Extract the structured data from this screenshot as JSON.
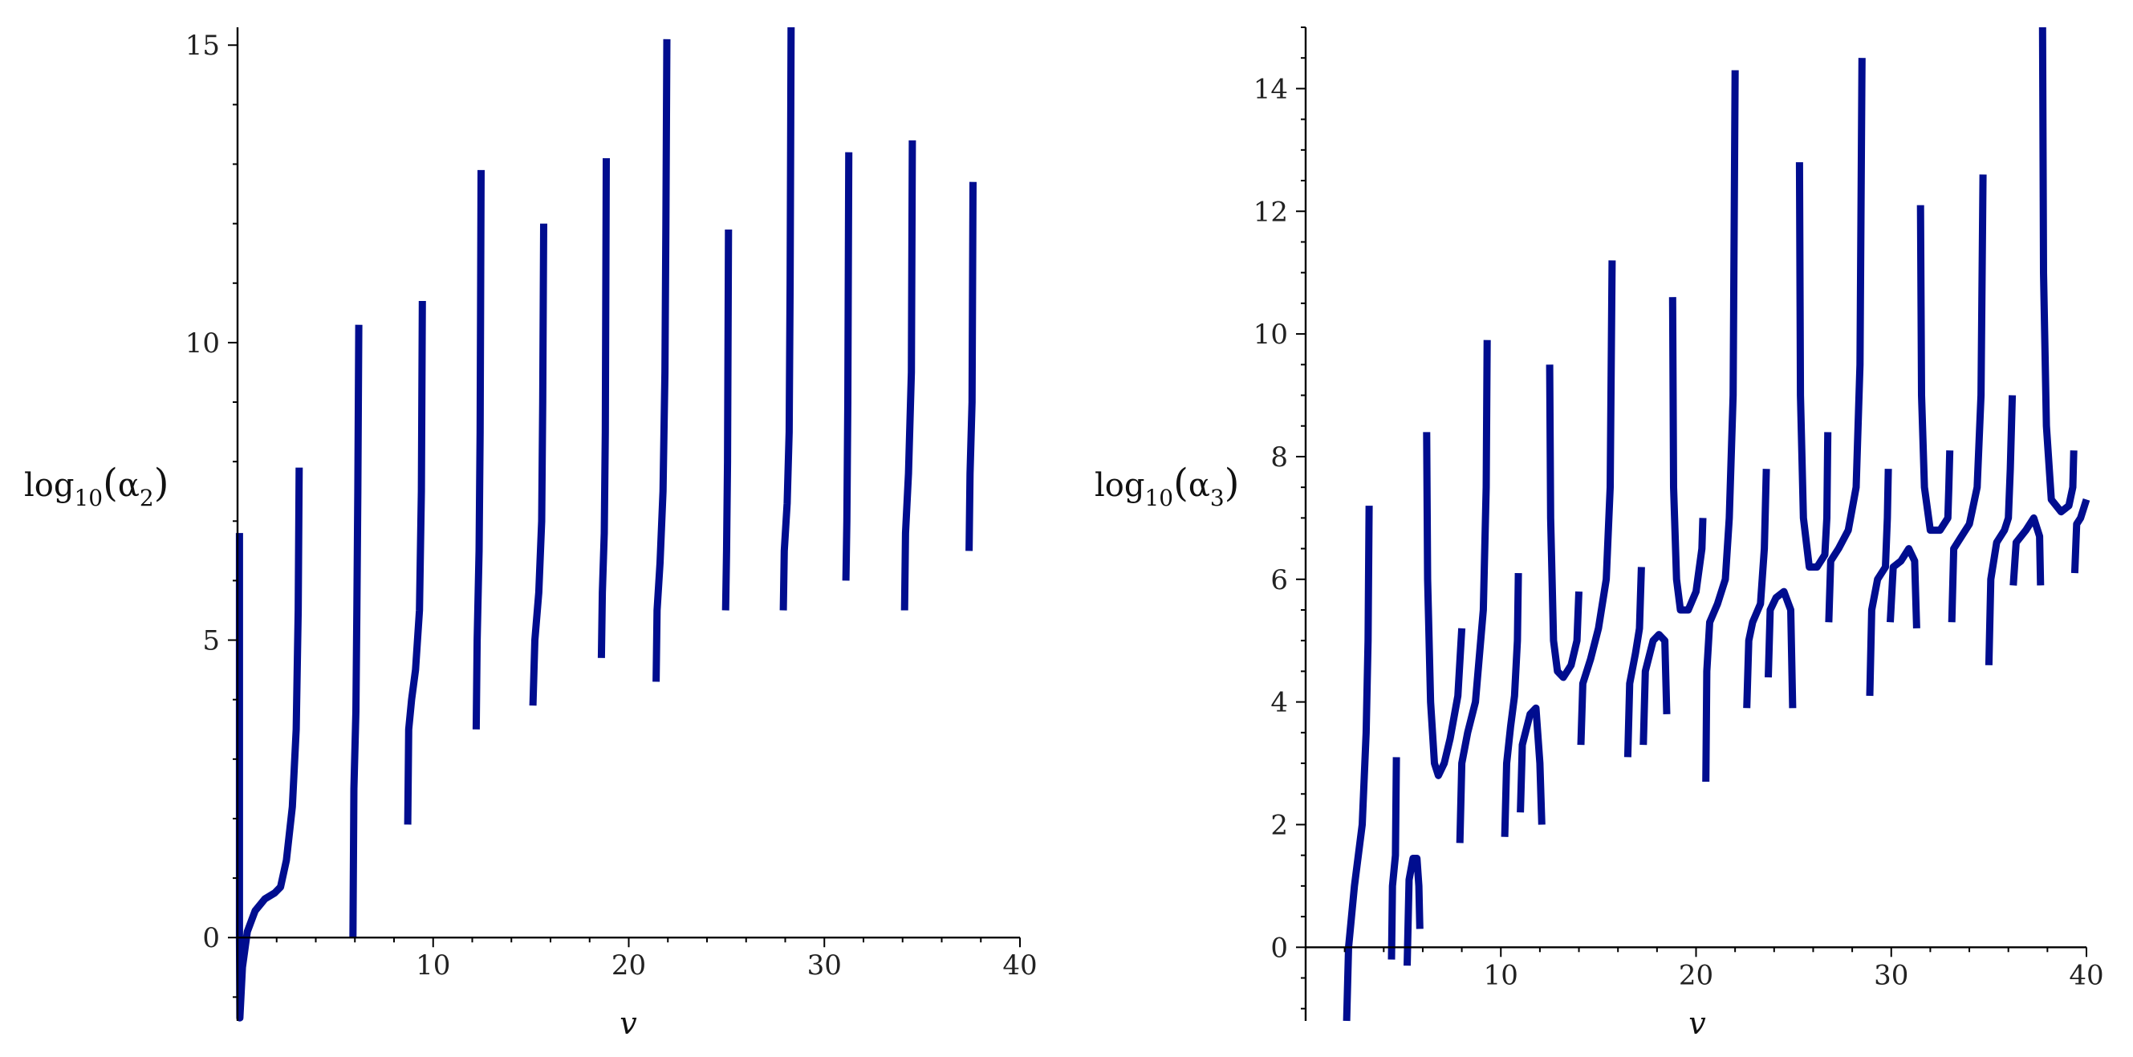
{
  "colors": {
    "curve": "#000d8f",
    "axis": "#000000",
    "background": "#ffffff"
  },
  "chart_data": [
    {
      "type": "line",
      "xlabel": "v",
      "ylabel": {
        "base": "log",
        "sub": "10",
        "arg": "α",
        "argsub": "2"
      },
      "xlim": [
        0,
        40
      ],
      "ylim": [
        -1.4,
        15.3
      ],
      "xticks": [
        10,
        20,
        30,
        40
      ],
      "yticks": [
        0,
        5,
        10,
        15
      ],
      "x_tick_labels": [
        "10",
        "20",
        "30",
        "40"
      ],
      "y_tick_labels": [
        "0",
        "5",
        "10",
        "15"
      ],
      "grid": false,
      "series": [
        {
          "points": [
            [
              0.1,
              6.8
            ],
            [
              0.1,
              0
            ],
            [
              0.12,
              -1.35
            ],
            [
              0.25,
              -0.5
            ],
            [
              0.5,
              0.1
            ],
            [
              0.9,
              0.45
            ],
            [
              1.4,
              0.65
            ],
            [
              1.9,
              0.75
            ],
            [
              2.2,
              0.85
            ],
            [
              2.5,
              1.3
            ],
            [
              2.8,
              2.2
            ],
            [
              3.0,
              3.5
            ],
            [
              3.1,
              5.5
            ],
            [
              3.15,
              7.9
            ]
          ]
        },
        {
          "points": [
            [
              5.9,
              0
            ],
            [
              5.95,
              2.5
            ],
            [
              6.05,
              3.8
            ],
            [
              6.1,
              5.5
            ],
            [
              6.15,
              7.5
            ],
            [
              6.2,
              10.3
            ]
          ]
        },
        {
          "points": [
            [
              8.7,
              1.9
            ],
            [
              8.75,
              3.5
            ],
            [
              8.9,
              4.0
            ],
            [
              9.1,
              4.5
            ],
            [
              9.3,
              5.5
            ],
            [
              9.4,
              7.5
            ],
            [
              9.45,
              10.7
            ]
          ]
        },
        {
          "points": [
            [
              12.2,
              3.5
            ],
            [
              12.25,
              5.0
            ],
            [
              12.35,
              6.5
            ],
            [
              12.4,
              8.5
            ],
            [
              12.45,
              12.9
            ]
          ]
        },
        {
          "points": [
            [
              15.1,
              3.9
            ],
            [
              15.2,
              5.0
            ],
            [
              15.4,
              5.8
            ],
            [
              15.55,
              7.0
            ],
            [
              15.6,
              9.0
            ],
            [
              15.65,
              12.0
            ]
          ]
        },
        {
          "points": [
            [
              18.6,
              4.7
            ],
            [
              18.65,
              5.8
            ],
            [
              18.75,
              6.8
            ],
            [
              18.8,
              8.5
            ],
            [
              18.85,
              13.1
            ]
          ]
        },
        {
          "points": [
            [
              21.4,
              4.3
            ],
            [
              21.45,
              5.5
            ],
            [
              21.6,
              6.3
            ],
            [
              21.75,
              7.5
            ],
            [
              21.85,
              9.5
            ],
            [
              21.9,
              12.0
            ],
            [
              21.95,
              15.1
            ]
          ]
        },
        {
          "points": [
            [
              24.95,
              5.5
            ],
            [
              25.0,
              6.5
            ],
            [
              25.05,
              8.0
            ],
            [
              25.1,
              11.9
            ]
          ]
        },
        {
          "points": [
            [
              27.9,
              5.5
            ],
            [
              27.95,
              6.5
            ],
            [
              28.1,
              7.3
            ],
            [
              28.2,
              8.5
            ],
            [
              28.25,
              11.0
            ],
            [
              28.3,
              15.3
            ]
          ]
        },
        {
          "points": [
            [
              31.1,
              6.0
            ],
            [
              31.15,
              7.0
            ],
            [
              31.2,
              9.0
            ],
            [
              31.25,
              13.2
            ]
          ]
        },
        {
          "points": [
            [
              34.1,
              5.5
            ],
            [
              34.15,
              6.8
            ],
            [
              34.3,
              7.8
            ],
            [
              34.45,
              9.5
            ],
            [
              34.5,
              13.4
            ]
          ]
        },
        {
          "points": [
            [
              37.4,
              6.5
            ],
            [
              37.45,
              7.8
            ],
            [
              37.55,
              9.0
            ],
            [
              37.6,
              12.7
            ]
          ]
        }
      ]
    },
    {
      "type": "line",
      "xlabel": "v",
      "ylabel": {
        "base": "log",
        "sub": "10",
        "arg": "α",
        "argsub": "3"
      },
      "xlim": [
        0,
        40
      ],
      "ylim": [
        -1.2,
        15
      ],
      "xticks": [
        10,
        20,
        30,
        40
      ],
      "yticks": [
        0,
        2,
        4,
        6,
        8,
        10,
        12,
        14
      ],
      "x_tick_labels": [
        "10",
        "20",
        "30",
        "40"
      ],
      "y_tick_labels": [
        "0",
        "2",
        "4",
        "6",
        "8",
        "10",
        "12",
        "14"
      ],
      "grid": false,
      "series": [
        {
          "points": [
            [
              2.1,
              -1.2
            ],
            [
              2.2,
              0
            ],
            [
              2.5,
              1.0
            ],
            [
              2.9,
              2.0
            ],
            [
              3.1,
              3.5
            ],
            [
              3.2,
              5.0
            ],
            [
              3.25,
              7.2
            ]
          ]
        },
        {
          "points": [
            [
              4.4,
              -0.2
            ],
            [
              4.45,
              1.0
            ],
            [
              4.6,
              1.5
            ],
            [
              4.65,
              3.1
            ]
          ]
        },
        {
          "points": [
            [
              5.2,
              -0.3
            ],
            [
              5.3,
              1.1
            ],
            [
              5.5,
              1.45
            ],
            [
              5.7,
              1.45
            ],
            [
              5.8,
              1.0
            ],
            [
              5.85,
              0.3
            ]
          ]
        },
        {
          "points": [
            [
              6.2,
              8.4
            ],
            [
              6.25,
              6.0
            ],
            [
              6.4,
              4.0
            ],
            [
              6.6,
              3.0
            ],
            [
              6.8,
              2.8
            ],
            [
              7.1,
              3.0
            ],
            [
              7.4,
              3.4
            ],
            [
              7.8,
              4.1
            ],
            [
              8.0,
              5.2
            ]
          ]
        },
        {
          "points": [
            [
              7.9,
              1.7
            ],
            [
              8.0,
              3.0
            ],
            [
              8.3,
              3.5
            ],
            [
              8.7,
              4.0
            ],
            [
              9.1,
              5.5
            ],
            [
              9.25,
              7.5
            ],
            [
              9.3,
              9.9
            ]
          ]
        },
        {
          "points": [
            [
              10.2,
              1.8
            ],
            [
              10.3,
              3.0
            ],
            [
              10.5,
              3.6
            ],
            [
              10.7,
              4.1
            ],
            [
              10.85,
              5.0
            ],
            [
              10.9,
              6.1
            ]
          ]
        },
        {
          "points": [
            [
              11.0,
              2.2
            ],
            [
              11.1,
              3.3
            ],
            [
              11.5,
              3.8
            ],
            [
              11.8,
              3.9
            ],
            [
              12.0,
              3.0
            ],
            [
              12.1,
              2.0
            ]
          ]
        },
        {
          "points": [
            [
              12.5,
              9.5
            ],
            [
              12.55,
              7.0
            ],
            [
              12.7,
              5.0
            ],
            [
              12.9,
              4.5
            ],
            [
              13.2,
              4.4
            ],
            [
              13.6,
              4.6
            ],
            [
              13.9,
              5.0
            ],
            [
              14.0,
              5.8
            ]
          ]
        },
        {
          "points": [
            [
              14.1,
              3.3
            ],
            [
              14.2,
              4.3
            ],
            [
              14.6,
              4.7
            ],
            [
              15.0,
              5.2
            ],
            [
              15.4,
              6.0
            ],
            [
              15.6,
              7.5
            ],
            [
              15.7,
              11.2
            ]
          ]
        },
        {
          "points": [
            [
              16.5,
              3.1
            ],
            [
              16.6,
              4.3
            ],
            [
              16.9,
              4.8
            ],
            [
              17.1,
              5.2
            ],
            [
              17.2,
              6.2
            ]
          ]
        },
        {
          "points": [
            [
              17.3,
              3.3
            ],
            [
              17.4,
              4.5
            ],
            [
              17.8,
              5.0
            ],
            [
              18.1,
              5.1
            ],
            [
              18.4,
              5.0
            ],
            [
              18.5,
              3.8
            ]
          ]
        },
        {
          "points": [
            [
              18.8,
              10.6
            ],
            [
              18.85,
              7.5
            ],
            [
              19.0,
              6.0
            ],
            [
              19.2,
              5.5
            ],
            [
              19.6,
              5.5
            ],
            [
              20.0,
              5.8
            ],
            [
              20.3,
              6.5
            ],
            [
              20.35,
              7.0
            ]
          ]
        },
        {
          "points": [
            [
              20.5,
              2.7
            ],
            [
              20.55,
              4.5
            ],
            [
              20.7,
              5.3
            ],
            [
              21.1,
              5.6
            ],
            [
              21.5,
              6.0
            ],
            [
              21.7,
              7.0
            ],
            [
              21.9,
              9.0
            ],
            [
              22.0,
              14.3
            ]
          ]
        },
        {
          "points": [
            [
              22.6,
              3.9
            ],
            [
              22.7,
              5.0
            ],
            [
              22.9,
              5.3
            ],
            [
              23.3,
              5.6
            ],
            [
              23.5,
              6.5
            ],
            [
              23.6,
              7.8
            ]
          ]
        },
        {
          "points": [
            [
              23.7,
              4.4
            ],
            [
              23.8,
              5.5
            ],
            [
              24.1,
              5.7
            ],
            [
              24.5,
              5.8
            ],
            [
              24.85,
              5.5
            ],
            [
              24.95,
              3.9
            ]
          ]
        },
        {
          "points": [
            [
              25.3,
              12.8
            ],
            [
              25.35,
              9.0
            ],
            [
              25.5,
              7.0
            ],
            [
              25.8,
              6.2
            ],
            [
              26.2,
              6.2
            ],
            [
              26.6,
              6.4
            ],
            [
              26.7,
              7.0
            ],
            [
              26.75,
              8.4
            ]
          ]
        },
        {
          "points": [
            [
              26.8,
              5.3
            ],
            [
              26.9,
              6.3
            ],
            [
              27.3,
              6.5
            ],
            [
              27.8,
              6.8
            ],
            [
              28.2,
              7.5
            ],
            [
              28.4,
              9.5
            ],
            [
              28.5,
              14.5
            ]
          ]
        },
        {
          "points": [
            [
              28.9,
              4.1
            ],
            [
              29.0,
              5.5
            ],
            [
              29.3,
              6.0
            ],
            [
              29.7,
              6.2
            ],
            [
              29.8,
              7.0
            ],
            [
              29.85,
              7.8
            ]
          ]
        },
        {
          "points": [
            [
              29.95,
              5.3
            ],
            [
              30.1,
              6.2
            ],
            [
              30.5,
              6.3
            ],
            [
              30.9,
              6.5
            ],
            [
              31.2,
              6.3
            ],
            [
              31.3,
              5.2
            ]
          ]
        },
        {
          "points": [
            [
              31.5,
              12.1
            ],
            [
              31.55,
              9.0
            ],
            [
              31.7,
              7.5
            ],
            [
              32.0,
              6.8
            ],
            [
              32.5,
              6.8
            ],
            [
              32.9,
              7.0
            ],
            [
              32.95,
              7.5
            ],
            [
              33.0,
              8.1
            ]
          ]
        },
        {
          "points": [
            [
              33.1,
              5.3
            ],
            [
              33.2,
              6.5
            ],
            [
              33.6,
              6.7
            ],
            [
              34.0,
              6.9
            ],
            [
              34.4,
              7.5
            ],
            [
              34.6,
              9.0
            ],
            [
              34.7,
              12.6
            ]
          ]
        },
        {
          "points": [
            [
              35.0,
              4.6
            ],
            [
              35.1,
              6.0
            ],
            [
              35.4,
              6.6
            ],
            [
              35.8,
              6.8
            ],
            [
              36.0,
              7.0
            ],
            [
              36.1,
              7.8
            ],
            [
              36.2,
              9.0
            ]
          ]
        },
        {
          "points": [
            [
              36.25,
              5.9
            ],
            [
              36.4,
              6.6
            ],
            [
              36.9,
              6.8
            ],
            [
              37.3,
              7.0
            ],
            [
              37.6,
              6.7
            ],
            [
              37.65,
              5.9
            ]
          ]
        },
        {
          "points": [
            [
              37.75,
              15.0
            ],
            [
              37.8,
              11.0
            ],
            [
              37.95,
              8.5
            ],
            [
              38.2,
              7.3
            ],
            [
              38.7,
              7.1
            ],
            [
              39.1,
              7.2
            ],
            [
              39.3,
              7.5
            ],
            [
              39.35,
              8.1
            ]
          ]
        },
        {
          "points": [
            [
              39.4,
              6.1
            ],
            [
              39.5,
              6.9
            ],
            [
              39.7,
              7.0
            ],
            [
              40.0,
              7.3
            ]
          ]
        }
      ]
    }
  ]
}
